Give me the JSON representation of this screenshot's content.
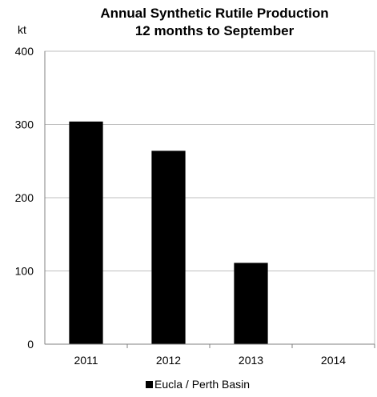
{
  "chart_data": {
    "type": "bar",
    "title": "Annual Synthetic Rutile Production",
    "subtitle": "12 months to September",
    "ylabel": "kt",
    "xlabel": "",
    "categories": [
      "2011",
      "2012",
      "2013",
      "2014"
    ],
    "series": [
      {
        "name": "Eucla / Perth Basin",
        "values": [
          304,
          264,
          111,
          0
        ],
        "color": "#000000"
      }
    ],
    "ylim": [
      0,
      400
    ],
    "yticks": [
      0,
      100,
      200,
      300,
      400
    ],
    "grid": true,
    "legend_position": "bottom"
  }
}
